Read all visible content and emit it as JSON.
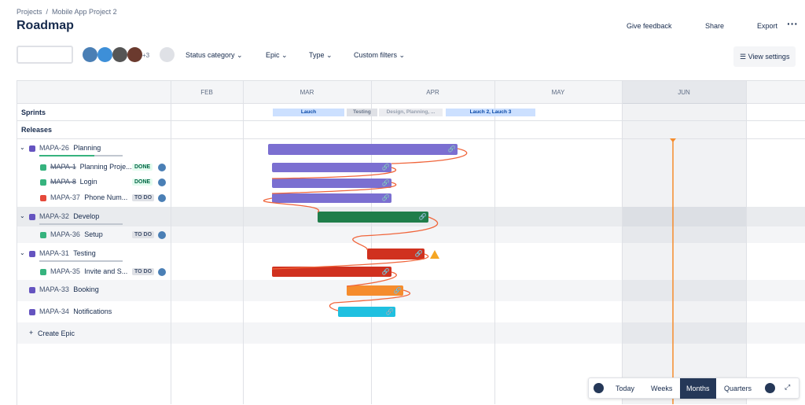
{
  "breadcrumb": [
    "Projects",
    "Mobile App Project 2"
  ],
  "title": "Roadmap",
  "header_actions": [
    "Give feedback",
    "Share",
    "Export"
  ],
  "avatars_more": "+3",
  "filters": [
    "Status category",
    "Epic",
    "Type",
    "Custom filters"
  ],
  "view_settings": "View settings",
  "months": [
    "FEB",
    "MAR",
    "APR",
    "MAY",
    "JUN"
  ],
  "sprints_label": "Sprints",
  "releases_label": "Releases",
  "sprints": [
    "Lauch",
    "Testing",
    "Design, Planning, ...",
    "Lauch 2, Lauch 3"
  ],
  "rows": [
    {
      "key": "MAPA-26",
      "name": "Planning"
    },
    {
      "key": "MAPA-1",
      "name": "Planning Proje...",
      "status": "DONE"
    },
    {
      "key": "MAPA-8",
      "name": "Login",
      "status": "DONE"
    },
    {
      "key": "MAPA-37",
      "name": "Phone Num...",
      "status": "TO DO"
    },
    {
      "key": "MAPA-32",
      "name": "Develop"
    },
    {
      "key": "MAPA-36",
      "name": "Setup",
      "status": "TO DO"
    },
    {
      "key": "MAPA-31",
      "name": "Testing"
    },
    {
      "key": "MAPA-35",
      "name": "Invite and S...",
      "status": "TO DO"
    },
    {
      "key": "MAPA-33",
      "name": "Booking"
    },
    {
      "key": "MAPA-34",
      "name": "Notifications"
    }
  ],
  "create_epic": "Create Epic",
  "zoom": [
    "Today",
    "Weeks",
    "Months",
    "Quarters"
  ]
}
